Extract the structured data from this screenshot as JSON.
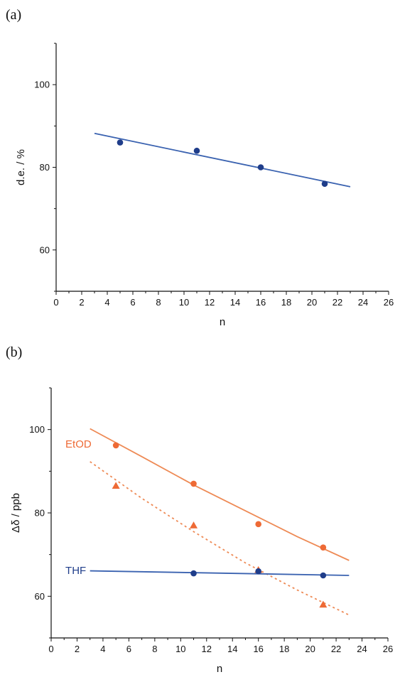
{
  "chart_data": [
    {
      "panel_label": "(a)",
      "type": "scatter",
      "xlabel": "n",
      "ylabel": "d.e. / %",
      "xlim": [
        0,
        26
      ],
      "ylim": [
        50,
        110
      ],
      "x_ticks": [
        0,
        2,
        4,
        6,
        8,
        10,
        12,
        14,
        16,
        18,
        20,
        22,
        24,
        26
      ],
      "y_ticks": [
        60,
        80,
        100
      ],
      "series": [
        {
          "color": "#1f3d8a",
          "line_color": "#3a62b0",
          "marker": "circle",
          "points": [
            [
              5,
              86
            ],
            [
              11,
              84
            ],
            [
              16,
              80
            ],
            [
              21,
              76
            ]
          ],
          "fit_line": [
            [
              3,
              88.2
            ],
            [
              23,
              75.3
            ]
          ],
          "fit_style": "solid"
        }
      ]
    },
    {
      "panel_label": "(b)",
      "type": "scatter",
      "xlabel": "n",
      "ylabel": "Δδ / ppb",
      "xlim": [
        0,
        26
      ],
      "ylim": [
        50,
        110
      ],
      "x_ticks": [
        0,
        2,
        4,
        6,
        8,
        10,
        12,
        14,
        16,
        18,
        20,
        22,
        24,
        26
      ],
      "y_ticks": [
        60,
        80,
        100
      ],
      "series": [
        {
          "name": "EtOD",
          "color": "#ee6a35",
          "line_color": "#ee8a55",
          "marker": "circle",
          "points": [
            [
              5,
              96.2
            ],
            [
              11,
              87
            ],
            [
              16,
              77.3
            ],
            [
              21,
              71.7
            ]
          ],
          "fit_line": [
            [
              3,
              100.2
            ],
            [
              7,
              93.5
            ],
            [
              11,
              86.7
            ],
            [
              15,
              80.5
            ],
            [
              19,
              74.3
            ],
            [
              23,
              68.6
            ]
          ],
          "fit_style": "solid",
          "label_at": [
            1.1,
            96.5
          ]
        },
        {
          "color": "#ee6a35",
          "line_color": "#ee8a55",
          "marker": "triangle",
          "points": [
            [
              5,
              86.5
            ],
            [
              11,
              77
            ],
            [
              16,
              66.3
            ],
            [
              21,
              58
            ]
          ],
          "fit_line": [
            [
              3,
              92.3
            ],
            [
              7,
              83.5
            ],
            [
              11,
              75.5
            ],
            [
              15,
              68
            ],
            [
              19,
              61.5
            ],
            [
              23,
              55.5
            ]
          ],
          "fit_style": "dotted"
        },
        {
          "name": "THF",
          "color": "#1f3d8a",
          "line_color": "#3a62b0",
          "marker": "circle",
          "points": [
            [
              11,
              65.5
            ],
            [
              16,
              66
            ],
            [
              21,
              65
            ]
          ],
          "fit_line": [
            [
              3,
              66.1
            ],
            [
              23,
              65
            ]
          ],
          "fit_style": "solid",
          "label_at": [
            1.1,
            66.2
          ]
        }
      ]
    }
  ]
}
